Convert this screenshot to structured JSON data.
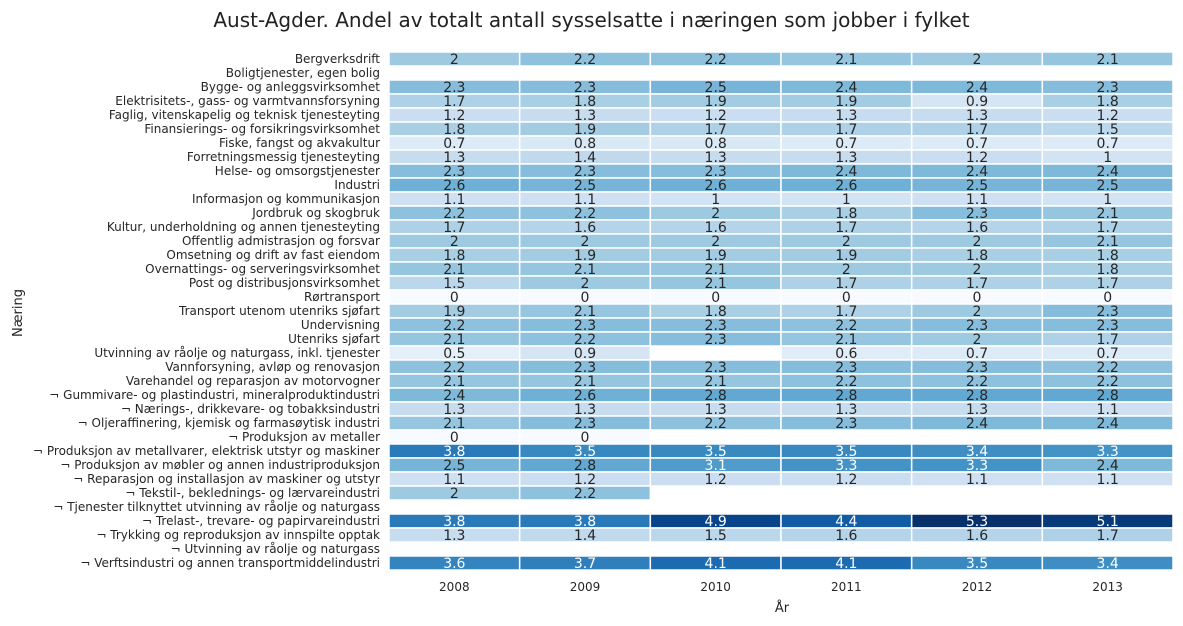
{
  "chart_data": {
    "type": "heatmap",
    "title": "Aust-Agder. Andel av totalt antall sysselsatte i næringen som jobber i fylket",
    "xlabel": "År",
    "ylabel": "Næring",
    "colormap": "Blues",
    "color_range": [
      0,
      5.3
    ],
    "grid": false,
    "legend": "none",
    "x": [
      "2008",
      "2009",
      "2010",
      "2011",
      "2012",
      "2013"
    ],
    "y": [
      "Bergverksdrift",
      "Boligtjenester, egen bolig",
      "Bygge- og anleggsvirksomhet",
      "Elektrisitets-, gass- og varmtvannsforsyning",
      "Faglig, vitenskapelig og teknisk tjenesteyting",
      "Finansierings- og forsikringsvirksomhet",
      "Fiske, fangst og akvakultur",
      "Forretningsmessig tjenesteyting",
      "Helse- og omsorgstjenester",
      "Industri",
      "Informasjon og kommunikasjon",
      "Jordbruk og skogbruk",
      "Kultur, underholdning og annen tjenesteyting",
      "Offentlig admistrasjon og forsvar",
      "Omsetning og drift av fast eiendom",
      "Overnattings- og serveringsvirksomhet",
      "Post og distribusjonsvirksomhet",
      "Rørtransport",
      "Transport utenom utenriks sjøfart",
      "Undervisning",
      "Utenriks sjøfart",
      "Utvinning av råolje og naturgass, inkl. tjenester",
      "Vannforsyning, avløp og renovasjon",
      "Varehandel og reparasjon av motorvogner",
      "¬ Gummivare- og plastindustri, mineralproduktindustri",
      "¬ Nærings-, drikkevare- og tobakksindustri",
      "¬ Oljeraffinering, kjemisk og farmasøytisk industri",
      "¬ Produksjon av metaller",
      "¬ Produksjon av metallvarer, elektrisk utstyr og maskiner",
      "¬ Produksjon av møbler og annen industriproduksjon",
      "¬ Reparasjon og installasjon av maskiner og utstyr",
      "¬ Tekstil-, beklednings- og lærvareindustri",
      "¬ Tjenester tilknyttet utvinning av råolje og naturgass",
      "¬ Trelast-, trevare- og papirvareindustri",
      "¬ Trykking og reproduksjon av innspilte opptak",
      "¬ Utvinning av råolje og naturgass",
      "¬ Verftsindustri og annen transportmiddelindustri"
    ],
    "values": [
      [
        2,
        2.2,
        2.2,
        2.1,
        2,
        2.1
      ],
      [
        null,
        null,
        null,
        null,
        null,
        null
      ],
      [
        2.3,
        2.3,
        2.5,
        2.4,
        2.4,
        2.3
      ],
      [
        1.7,
        1.8,
        1.9,
        1.9,
        0.9,
        1.8
      ],
      [
        1.2,
        1.3,
        1.2,
        1.3,
        1.3,
        1.2
      ],
      [
        1.8,
        1.9,
        1.7,
        1.7,
        1.7,
        1.5
      ],
      [
        0.7,
        0.8,
        0.8,
        0.7,
        0.7,
        0.7
      ],
      [
        1.3,
        1.4,
        1.3,
        1.3,
        1.2,
        1
      ],
      [
        2.3,
        2.3,
        2.3,
        2.4,
        2.4,
        2.4
      ],
      [
        2.6,
        2.5,
        2.6,
        2.6,
        2.5,
        2.5
      ],
      [
        1.1,
        1.1,
        1,
        1,
        1.1,
        1
      ],
      [
        2.2,
        2.2,
        2,
        1.8,
        2.3,
        2.1
      ],
      [
        1.7,
        1.6,
        1.6,
        1.7,
        1.6,
        1.7
      ],
      [
        2,
        2,
        2,
        2,
        2,
        2.1
      ],
      [
        1.8,
        1.9,
        1.9,
        1.9,
        1.8,
        1.8
      ],
      [
        2.1,
        2.1,
        2.1,
        2,
        2,
        1.8
      ],
      [
        1.5,
        2,
        2.1,
        1.7,
        1.7,
        1.7
      ],
      [
        0,
        0,
        0,
        0,
        0,
        0
      ],
      [
        1.9,
        2.1,
        1.8,
        1.7,
        2,
        2.3
      ],
      [
        2.2,
        2.3,
        2.3,
        2.2,
        2.3,
        2.3
      ],
      [
        2.1,
        2.2,
        2.3,
        2.1,
        2,
        1.7
      ],
      [
        0.5,
        0.9,
        null,
        0.6,
        0.7,
        0.7
      ],
      [
        2.2,
        2.3,
        2.3,
        2.3,
        2.3,
        2.2
      ],
      [
        2.1,
        2.1,
        2.1,
        2.2,
        2.2,
        2.2
      ],
      [
        2.4,
        2.6,
        2.8,
        2.8,
        2.8,
        2.8
      ],
      [
        1.3,
        1.3,
        1.3,
        1.3,
        1.3,
        1.1
      ],
      [
        2.1,
        2.3,
        2.2,
        2.3,
        2.4,
        2.4
      ],
      [
        0,
        0,
        null,
        null,
        null,
        null
      ],
      [
        3.8,
        3.5,
        3.5,
        3.5,
        3.4,
        3.3
      ],
      [
        2.5,
        2.8,
        3.1,
        3.3,
        3.3,
        2.4
      ],
      [
        1.1,
        1.2,
        1.2,
        1.2,
        1.1,
        1.1
      ],
      [
        2,
        2.2,
        null,
        null,
        null,
        null
      ],
      [
        null,
        null,
        null,
        null,
        null,
        null
      ],
      [
        3.8,
        3.8,
        4.9,
        4.4,
        5.3,
        5.1
      ],
      [
        1.3,
        1.4,
        1.5,
        1.6,
        1.6,
        1.7
      ],
      [
        null,
        null,
        null,
        null,
        null,
        null
      ],
      [
        3.6,
        3.7,
        4.1,
        4.1,
        3.5,
        3.4
      ]
    ]
  }
}
